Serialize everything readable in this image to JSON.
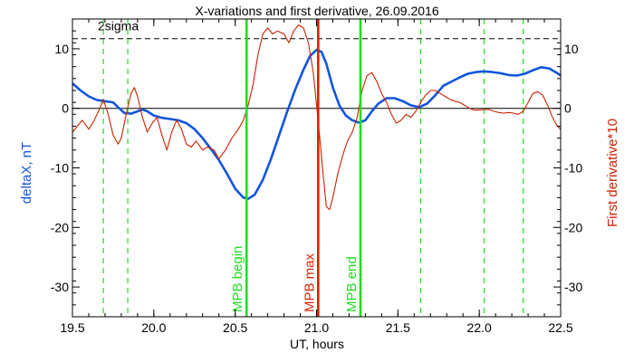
{
  "chart_data": {
    "type": "line",
    "title": "X-variations and first derivative, 26.09.2016",
    "xlabel": "UT, hours",
    "ylabel_left": "deltaX, nT",
    "ylabel_right": "First derivative*10",
    "xlim": [
      19.5,
      22.5
    ],
    "ylim": [
      -35,
      15
    ],
    "x_ticks": [
      "19.5",
      "20.0",
      "20.5",
      "21.0",
      "21.5",
      "22.0",
      "22.5"
    ],
    "y_ticks": [
      "10",
      "0",
      "-10",
      "-20",
      "-30"
    ],
    "threshold": {
      "label": "2sigma",
      "value": 11.7
    },
    "zero_line": 0,
    "vertical_markers": [
      {
        "label": "MPB begin",
        "x": 20.57,
        "color": "#22dd22"
      },
      {
        "label": "MPB max",
        "x": 21.01,
        "color": "#dd2200"
      },
      {
        "label": "MPB end",
        "x": 21.27,
        "color": "#22dd22"
      }
    ],
    "dashed_markers": [
      19.69,
      19.84,
      21.64,
      22.03,
      22.27
    ],
    "series": [
      {
        "key": "deltaX",
        "color": "#1155dd",
        "points": [
          [
            19.5,
            4.2
          ],
          [
            19.55,
            3.0
          ],
          [
            19.6,
            2.0
          ],
          [
            19.65,
            1.4
          ],
          [
            19.7,
            1.2
          ],
          [
            19.75,
            1.0
          ],
          [
            19.78,
            0.2
          ],
          [
            19.82,
            -0.8
          ],
          [
            19.86,
            -0.9
          ],
          [
            19.9,
            -0.5
          ],
          [
            19.93,
            -0.2
          ],
          [
            19.96,
            -0.5
          ],
          [
            20.0,
            -1.2
          ],
          [
            20.05,
            -1.6
          ],
          [
            20.1,
            -1.8
          ],
          [
            20.15,
            -2.0
          ],
          [
            20.2,
            -2.5
          ],
          [
            20.25,
            -3.5
          ],
          [
            20.3,
            -5.0
          ],
          [
            20.35,
            -6.8
          ],
          [
            20.4,
            -8.7
          ],
          [
            20.45,
            -11.0
          ],
          [
            20.5,
            -13.5
          ],
          [
            20.55,
            -15.0
          ],
          [
            20.58,
            -15.2
          ],
          [
            20.62,
            -14.5
          ],
          [
            20.67,
            -12.0
          ],
          [
            20.72,
            -8.5
          ],
          [
            20.77,
            -4.5
          ],
          [
            20.82,
            -0.5
          ],
          [
            20.87,
            3.2
          ],
          [
            20.92,
            6.5
          ],
          [
            20.96,
            8.8
          ],
          [
            21.0,
            9.8
          ],
          [
            21.03,
            9.5
          ],
          [
            21.06,
            7.5
          ],
          [
            21.1,
            3.5
          ],
          [
            21.14,
            0.5
          ],
          [
            21.18,
            -1.2
          ],
          [
            21.22,
            -2.0
          ],
          [
            21.26,
            -2.4
          ],
          [
            21.3,
            -2.0
          ],
          [
            21.34,
            -0.5
          ],
          [
            21.38,
            0.8
          ],
          [
            21.43,
            1.7
          ],
          [
            21.48,
            1.7
          ],
          [
            21.53,
            1.2
          ],
          [
            21.58,
            0.5
          ],
          [
            21.63,
            0.2
          ],
          [
            21.68,
            0.8
          ],
          [
            21.73,
            2.2
          ],
          [
            21.78,
            3.8
          ],
          [
            21.83,
            4.5
          ],
          [
            21.88,
            5.2
          ],
          [
            21.93,
            5.8
          ],
          [
            21.98,
            6.1
          ],
          [
            22.03,
            6.2
          ],
          [
            22.08,
            6.1
          ],
          [
            22.13,
            5.9
          ],
          [
            22.18,
            5.6
          ],
          [
            22.23,
            5.5
          ],
          [
            22.28,
            5.8
          ],
          [
            22.33,
            6.4
          ],
          [
            22.38,
            6.9
          ],
          [
            22.43,
            6.7
          ],
          [
            22.48,
            5.9
          ],
          [
            22.5,
            5.5
          ]
        ]
      },
      {
        "key": "derivative",
        "color": "#cc2200",
        "points": [
          [
            19.5,
            -4.0
          ],
          [
            19.53,
            -3.0
          ],
          [
            19.56,
            -2.0
          ],
          [
            19.6,
            -3.5
          ],
          [
            19.63,
            -2.2
          ],
          [
            19.66,
            -0.5
          ],
          [
            19.69,
            1.5
          ],
          [
            19.72,
            -1.0
          ],
          [
            19.75,
            -4.5
          ],
          [
            19.78,
            -6.0
          ],
          [
            19.8,
            -5.0
          ],
          [
            19.83,
            -1.0
          ],
          [
            19.86,
            2.5
          ],
          [
            19.88,
            3.5
          ],
          [
            19.9,
            2.0
          ],
          [
            19.93,
            -1.5
          ],
          [
            19.96,
            -4.0
          ],
          [
            19.99,
            -2.5
          ],
          [
            20.02,
            -1.5
          ],
          [
            20.05,
            -4.5
          ],
          [
            20.08,
            -7.0
          ],
          [
            20.11,
            -4.0
          ],
          [
            20.14,
            -2.0
          ],
          [
            20.17,
            -3.5
          ],
          [
            20.2,
            -6.0
          ],
          [
            20.23,
            -6.5
          ],
          [
            20.26,
            -5.5
          ],
          [
            20.3,
            -7.0
          ],
          [
            20.33,
            -6.5
          ],
          [
            20.37,
            -7.0
          ],
          [
            20.4,
            -8.5
          ],
          [
            20.44,
            -7.0
          ],
          [
            20.48,
            -5.0
          ],
          [
            20.52,
            -3.5
          ],
          [
            20.55,
            -2.0
          ],
          [
            20.58,
            0.5
          ],
          [
            20.61,
            4.0
          ],
          [
            20.64,
            9.0
          ],
          [
            20.67,
            12.5
          ],
          [
            20.7,
            13.5
          ],
          [
            20.73,
            12.5
          ],
          [
            20.76,
            13.0
          ],
          [
            20.8,
            12.5
          ],
          [
            20.83,
            11.0
          ],
          [
            20.86,
            13.0
          ],
          [
            20.89,
            14.0
          ],
          [
            20.92,
            13.5
          ],
          [
            20.95,
            11.0
          ],
          [
            20.98,
            6.0
          ],
          [
            21.0,
            0.5
          ],
          [
            21.02,
            -5.0
          ],
          [
            21.04,
            -11.0
          ],
          [
            21.06,
            -16.5
          ],
          [
            21.08,
            -17.0
          ],
          [
            21.1,
            -15.0
          ],
          [
            21.13,
            -11.0
          ],
          [
            21.16,
            -8.0
          ],
          [
            21.19,
            -5.5
          ],
          [
            21.22,
            -4.0
          ],
          [
            21.25,
            -1.5
          ],
          [
            21.28,
            3.0
          ],
          [
            21.31,
            5.5
          ],
          [
            21.34,
            6.0
          ],
          [
            21.37,
            4.5
          ],
          [
            21.4,
            2.5
          ],
          [
            21.43,
            1.0
          ],
          [
            21.46,
            -1.0
          ],
          [
            21.49,
            -2.5
          ],
          [
            21.52,
            -2.0
          ],
          [
            21.55,
            -1.0
          ],
          [
            21.58,
            -1.5
          ],
          [
            21.61,
            -0.5
          ],
          [
            21.64,
            1.0
          ],
          [
            21.67,
            2.2
          ],
          [
            21.7,
            3.0
          ],
          [
            21.73,
            3.0
          ],
          [
            21.76,
            2.5
          ],
          [
            21.79,
            2.0
          ],
          [
            21.82,
            1.5
          ],
          [
            21.85,
            1.2
          ],
          [
            21.88,
            1.0
          ],
          [
            21.91,
            0.5
          ],
          [
            21.94,
            0.0
          ],
          [
            21.97,
            -0.3
          ],
          [
            22.0,
            -0.3
          ],
          [
            22.03,
            -0.2
          ],
          [
            22.06,
            -0.2
          ],
          [
            22.09,
            -0.5
          ],
          [
            22.12,
            -0.7
          ],
          [
            22.15,
            -0.8
          ],
          [
            22.18,
            -0.7
          ],
          [
            22.21,
            -0.8
          ],
          [
            22.24,
            -1.0
          ],
          [
            22.27,
            -0.5
          ],
          [
            22.3,
            1.0
          ],
          [
            22.33,
            2.5
          ],
          [
            22.36,
            2.8
          ],
          [
            22.39,
            2.2
          ],
          [
            22.42,
            0.5
          ],
          [
            22.45,
            -1.5
          ],
          [
            22.48,
            -3.0
          ],
          [
            22.5,
            -3.5
          ]
        ]
      }
    ]
  }
}
